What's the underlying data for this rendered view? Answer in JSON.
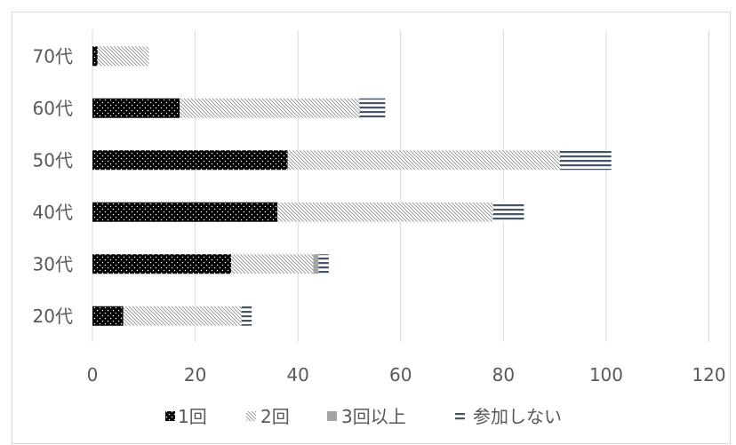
{
  "chart_data": {
    "type": "bar",
    "orientation": "horizontal",
    "stacked": true,
    "categories": [
      "20代",
      "30代",
      "40代",
      "50代",
      "60代",
      "70代"
    ],
    "series": [
      {
        "name": "1回",
        "values": [
          6,
          27,
          36,
          38,
          17,
          1
        ],
        "color": "#000000"
      },
      {
        "name": "2回",
        "values": [
          23,
          16,
          42,
          53,
          35,
          10
        ],
        "color": "#7f7f7f"
      },
      {
        "name": "3回以上",
        "values": [
          0,
          1,
          0,
          0,
          0,
          0
        ],
        "color": "#a5a5a5"
      },
      {
        "name": "参加しない",
        "values": [
          2,
          2,
          6,
          10,
          5,
          0
        ],
        "color": "#44546a"
      }
    ],
    "xlim": [
      0,
      120
    ],
    "xticks": [
      0,
      20,
      40,
      60,
      80,
      100,
      120
    ],
    "grid": true,
    "legend_position": "bottom",
    "gridline_color": "#d9d9d9",
    "text_color": "#595959"
  }
}
